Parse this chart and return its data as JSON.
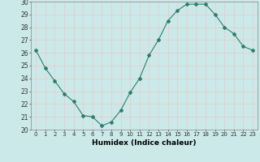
{
  "x": [
    0,
    1,
    2,
    3,
    4,
    5,
    6,
    7,
    8,
    9,
    10,
    11,
    12,
    13,
    14,
    15,
    16,
    17,
    18,
    19,
    20,
    21,
    22,
    23
  ],
  "y": [
    26.2,
    24.8,
    23.8,
    22.8,
    22.2,
    21.1,
    21.0,
    20.3,
    20.6,
    21.5,
    22.9,
    24.0,
    25.8,
    27.0,
    28.5,
    29.3,
    29.8,
    29.8,
    29.8,
    29.0,
    28.0,
    27.5,
    26.5,
    26.2
  ],
  "line_color": "#2e7d6e",
  "marker": "D",
  "marker_size": 2.0,
  "bg_color": "#cce9e9",
  "grid_color": "#e8c8c8",
  "title": "",
  "xlabel": "Humidex (Indice chaleur)",
  "ylabel": "",
  "xlim": [
    -0.5,
    23.5
  ],
  "ylim": [
    20,
    30
  ],
  "yticks": [
    20,
    21,
    22,
    23,
    24,
    25,
    26,
    27,
    28,
    29,
    30
  ],
  "xticks": [
    0,
    1,
    2,
    3,
    4,
    5,
    6,
    7,
    8,
    9,
    10,
    11,
    12,
    13,
    14,
    15,
    16,
    17,
    18,
    19,
    20,
    21,
    22,
    23
  ]
}
